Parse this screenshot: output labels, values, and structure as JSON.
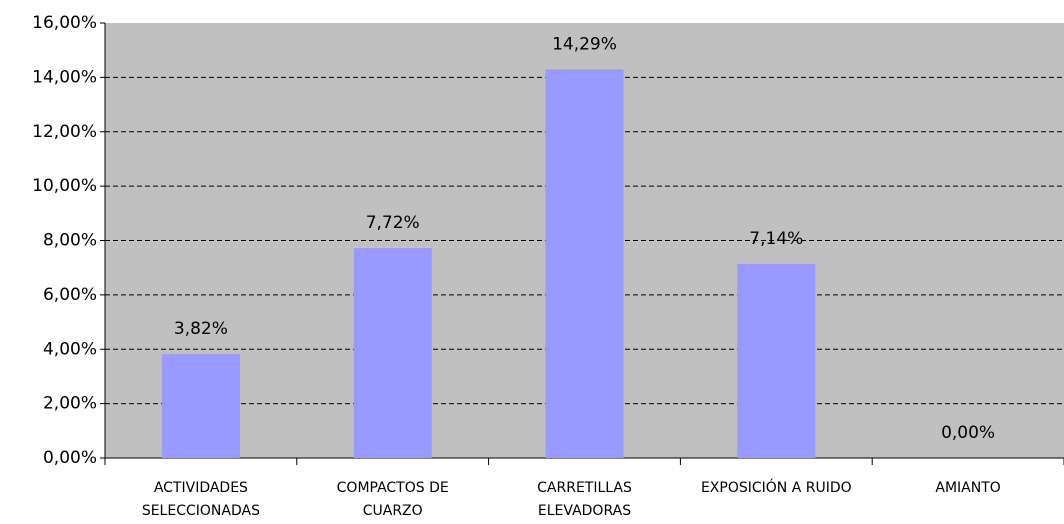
{
  "chart_data": {
    "type": "bar",
    "categories": [
      "ACTIVIDADES\nSELECCIONADAS",
      "COMPACTOS DE\nCUARZO",
      "CARRETILLAS\nELEVADORAS",
      "EXPOSICIÓN A RUIDO",
      "AMIANTO"
    ],
    "values": [
      3.82,
      7.72,
      14.29,
      7.14,
      0
    ],
    "value_labels": [
      "3,82%",
      "7,72%",
      "14,29%",
      "7,14%",
      "0,00%"
    ],
    "color": "#9999ff",
    "ylim": [
      0,
      16
    ],
    "yticks": [
      {
        "value": 0,
        "label": "0,00%"
      },
      {
        "value": 2,
        "label": "2,00%"
      },
      {
        "value": 4,
        "label": "4,00%"
      },
      {
        "value": 6,
        "label": "6,00%"
      },
      {
        "value": 8,
        "label": "8,00%"
      },
      {
        "value": 10,
        "label": "10,00%"
      },
      {
        "value": 12,
        "label": "12,00%"
      },
      {
        "value": 14,
        "label": "14,00%"
      },
      {
        "value": 16,
        "label": "16,00%"
      }
    ],
    "grid": true
  }
}
